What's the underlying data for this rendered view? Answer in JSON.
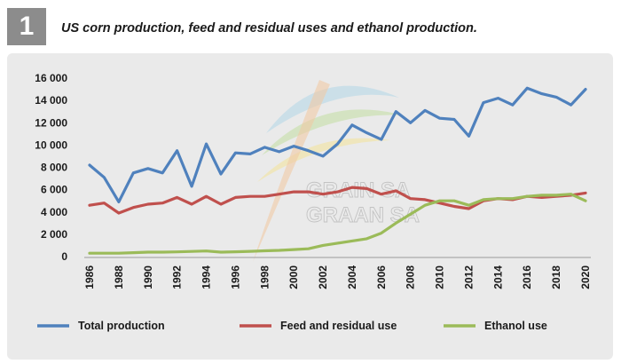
{
  "figure": {
    "number": "1",
    "title": "US corn production, feed and residual uses and ethanol production."
  },
  "watermark": {
    "lines": [
      "GRAIN SA",
      "GRAAN SA"
    ]
  },
  "chart_data": {
    "type": "line",
    "title": "",
    "xlabel": "",
    "ylabel": "",
    "ylim": [
      0,
      16000
    ],
    "yticks": [
      0,
      2000,
      4000,
      6000,
      8000,
      10000,
      12000,
      14000,
      16000
    ],
    "ytick_labels": [
      "0",
      "2 000",
      "4 000",
      "6 000",
      "8 000",
      "10 000",
      "12 000",
      "14 000",
      "16 000"
    ],
    "x": [
      1986,
      1987,
      1988,
      1989,
      1990,
      1991,
      1992,
      1993,
      1994,
      1995,
      1996,
      1997,
      1998,
      1999,
      2000,
      2001,
      2002,
      2003,
      2004,
      2005,
      2006,
      2007,
      2008,
      2009,
      2010,
      2011,
      2012,
      2013,
      2014,
      2015,
      2016,
      2017,
      2018,
      2019,
      2020
    ],
    "xticks": [
      1986,
      1988,
      1990,
      1992,
      1994,
      1996,
      1998,
      2000,
      2002,
      2004,
      2006,
      2008,
      2010,
      2012,
      2014,
      2016,
      2018,
      2020
    ],
    "xtick_labels": [
      "1986",
      "1988",
      "1990",
      "1992",
      "1994",
      "1996",
      "1998",
      "2000",
      "2002",
      "2004",
      "2006",
      "2008",
      "2010",
      "2012",
      "2014",
      "2016",
      "2018",
      "2020"
    ],
    "grid": false,
    "legend_position": "bottom",
    "series": [
      {
        "name": "Total production",
        "color": "#4f81bd",
        "values": [
          8200,
          7100,
          4900,
          7500,
          7900,
          7500,
          9500,
          6300,
          10100,
          7400,
          9300,
          9200,
          9800,
          9400,
          9900,
          9500,
          9000,
          10100,
          11800,
          11100,
          10500,
          13000,
          12000,
          13100,
          12400,
          12300,
          10800,
          13800,
          14200,
          13600,
          15100,
          14600,
          14300,
          13600,
          15000
        ]
      },
      {
        "name": "Feed and residual use",
        "color": "#c0504d",
        "values": [
          4600,
          4800,
          3900,
          4400,
          4700,
          4800,
          5300,
          4700,
          5400,
          4700,
          5300,
          5400,
          5400,
          5600,
          5800,
          5800,
          5600,
          5800,
          6200,
          6100,
          5600,
          5900,
          5200,
          5100,
          4800,
          4500,
          4300,
          5000,
          5200,
          5100,
          5400,
          5300,
          5400,
          5500,
          5700
        ]
      },
      {
        "name": "Ethanol use",
        "color": "#9bbb59",
        "values": [
          300,
          300,
          300,
          350,
          400,
          400,
          420,
          460,
          500,
          400,
          430,
          470,
          520,
          560,
          630,
          700,
          1000,
          1200,
          1400,
          1600,
          2100,
          3000,
          3800,
          4600,
          5000,
          5000,
          4600,
          5100,
          5200,
          5200,
          5400,
          5500,
          5500,
          5600,
          5000
        ]
      }
    ]
  }
}
